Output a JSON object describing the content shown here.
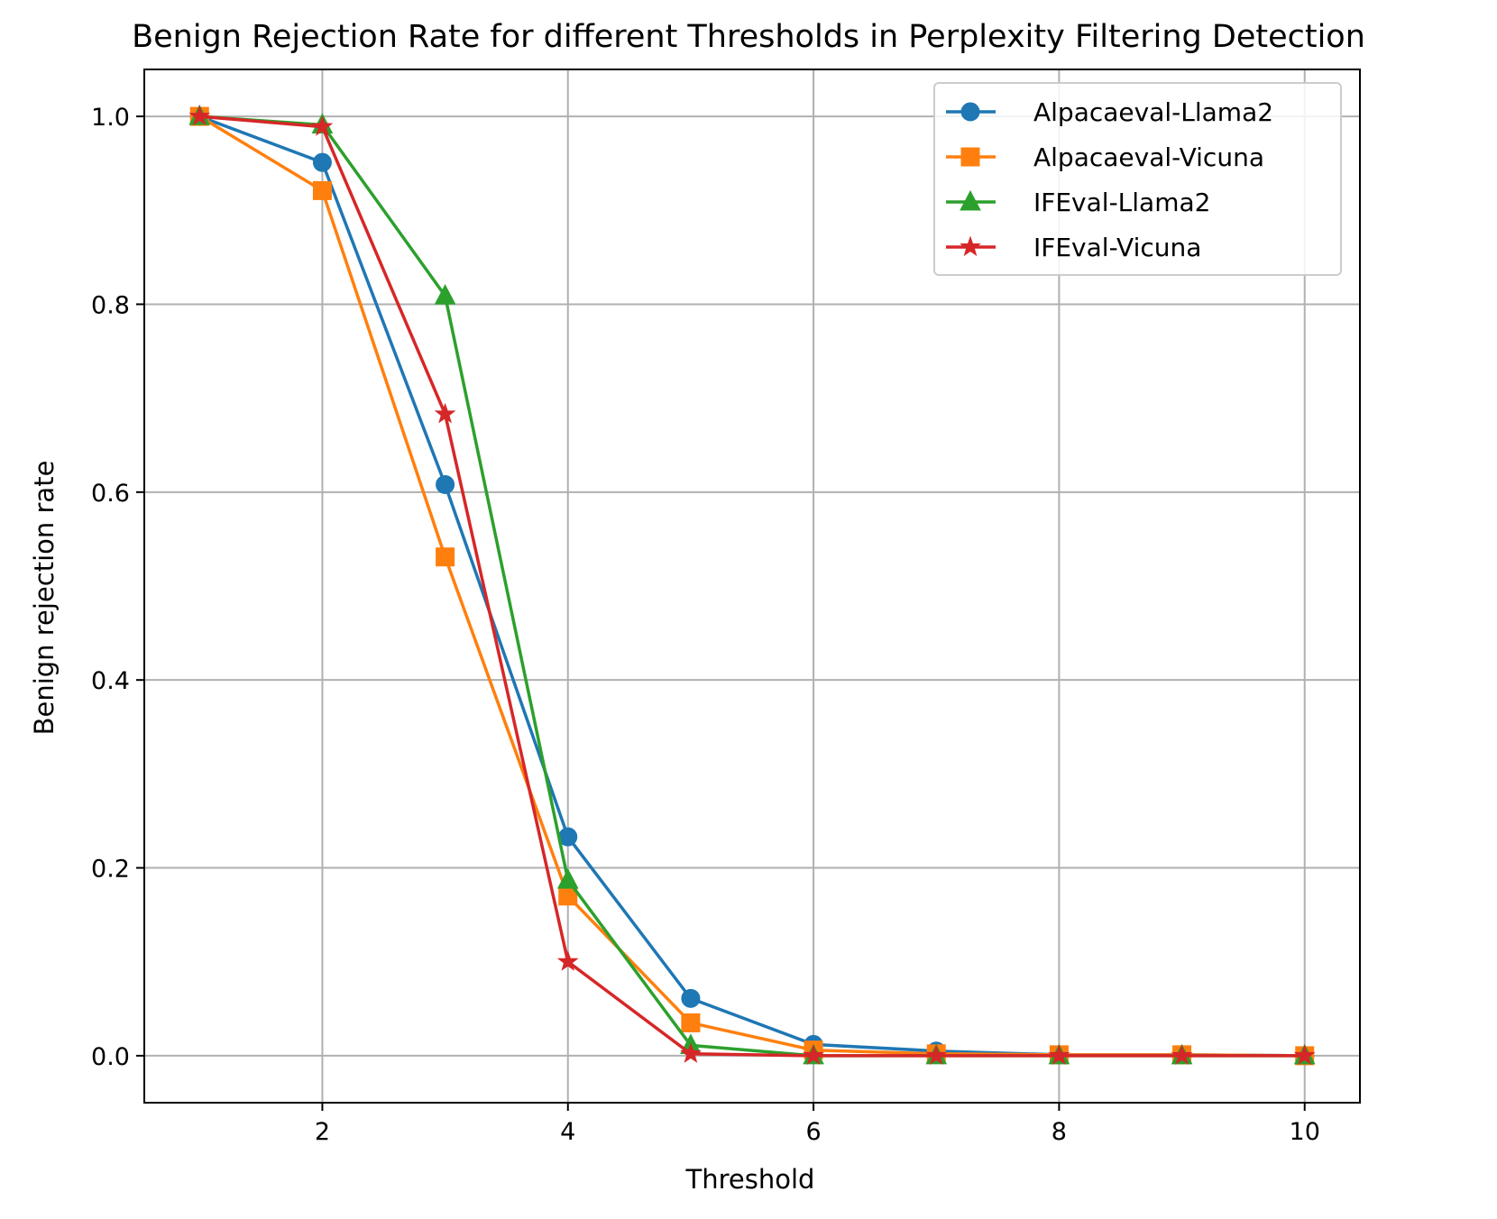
{
  "chart_data": {
    "type": "line",
    "title": "Benign Rejection Rate for different Thresholds in Perplexity Filtering Detection",
    "xlabel": "Threshold",
    "ylabel": "Benign rejection rate",
    "xlim": [
      0.55,
      10.45
    ],
    "ylim": [
      -0.05,
      1.05
    ],
    "xticks": [
      2,
      4,
      6,
      8,
      10
    ],
    "xtick_labels": [
      "2",
      "4",
      "6",
      "8",
      "10"
    ],
    "yticks": [
      0.0,
      0.2,
      0.4,
      0.6,
      0.8,
      1.0
    ],
    "ytick_labels": [
      "0.0",
      "0.2",
      "0.4",
      "0.6",
      "0.8",
      "1.0"
    ],
    "grid": true,
    "legend_position": "top-right",
    "x": [
      1,
      2,
      3,
      4,
      5,
      6,
      7,
      8,
      9,
      10
    ],
    "series": [
      {
        "name": "Alpacaeval-Llama2",
        "color": "#1f77b4",
        "marker": "circle",
        "values": [
          1.0,
          0.951,
          0.608,
          0.233,
          0.061,
          0.012,
          0.005,
          0.001,
          0.001,
          0.0
        ]
      },
      {
        "name": "Alpacaeval-Vicuna",
        "color": "#ff7f0e",
        "marker": "square",
        "values": [
          1.0,
          0.921,
          0.531,
          0.17,
          0.035,
          0.006,
          0.002,
          0.001,
          0.001,
          0.0
        ]
      },
      {
        "name": "IFEval-Llama2",
        "color": "#2ca02c",
        "marker": "triangle",
        "values": [
          1.0,
          0.991,
          0.809,
          0.187,
          0.011,
          0.0,
          0.0,
          0.0,
          0.0,
          0.0
        ]
      },
      {
        "name": "IFEval-Vicuna",
        "color": "#d62728",
        "marker": "star",
        "values": [
          1.0,
          0.989,
          0.683,
          0.1,
          0.002,
          0.0,
          0.0,
          0.0,
          0.0,
          0.0
        ]
      }
    ]
  }
}
